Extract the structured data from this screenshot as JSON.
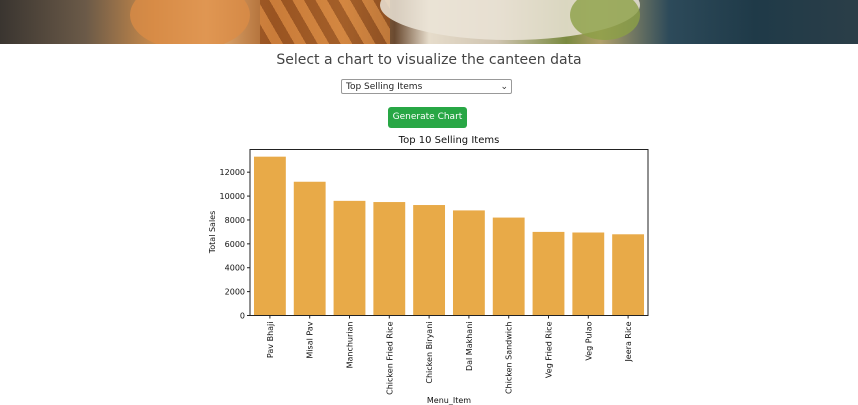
{
  "page": {
    "heading": "Select a chart to visualize the canteen data",
    "select": {
      "selected": "Top Selling Items"
    },
    "generate_button": "Generate Chart"
  },
  "colors": {
    "bar": "#e8aa48",
    "button": "#28a745"
  },
  "chart_data": {
    "type": "bar",
    "title": "Top 10 Selling Items",
    "xlabel": "Menu_Item",
    "ylabel": "Total Sales",
    "categories": [
      "Pav Bhaji",
      "Misal Pav",
      "Manchurian",
      "Chicken Fried Rice",
      "Chicken Biryani",
      "Dal Makhani",
      "Chicken Sandwich",
      "Veg Fried Rice",
      "Veg Pulao",
      "Jeera Rice"
    ],
    "values": [
      13300,
      11200,
      9600,
      9500,
      9250,
      8800,
      8200,
      7000,
      6950,
      6800
    ],
    "ylim": [
      0,
      13900
    ],
    "yticks": [
      0,
      2000,
      4000,
      6000,
      8000,
      10000,
      12000
    ],
    "grid": false,
    "legend": "none"
  }
}
